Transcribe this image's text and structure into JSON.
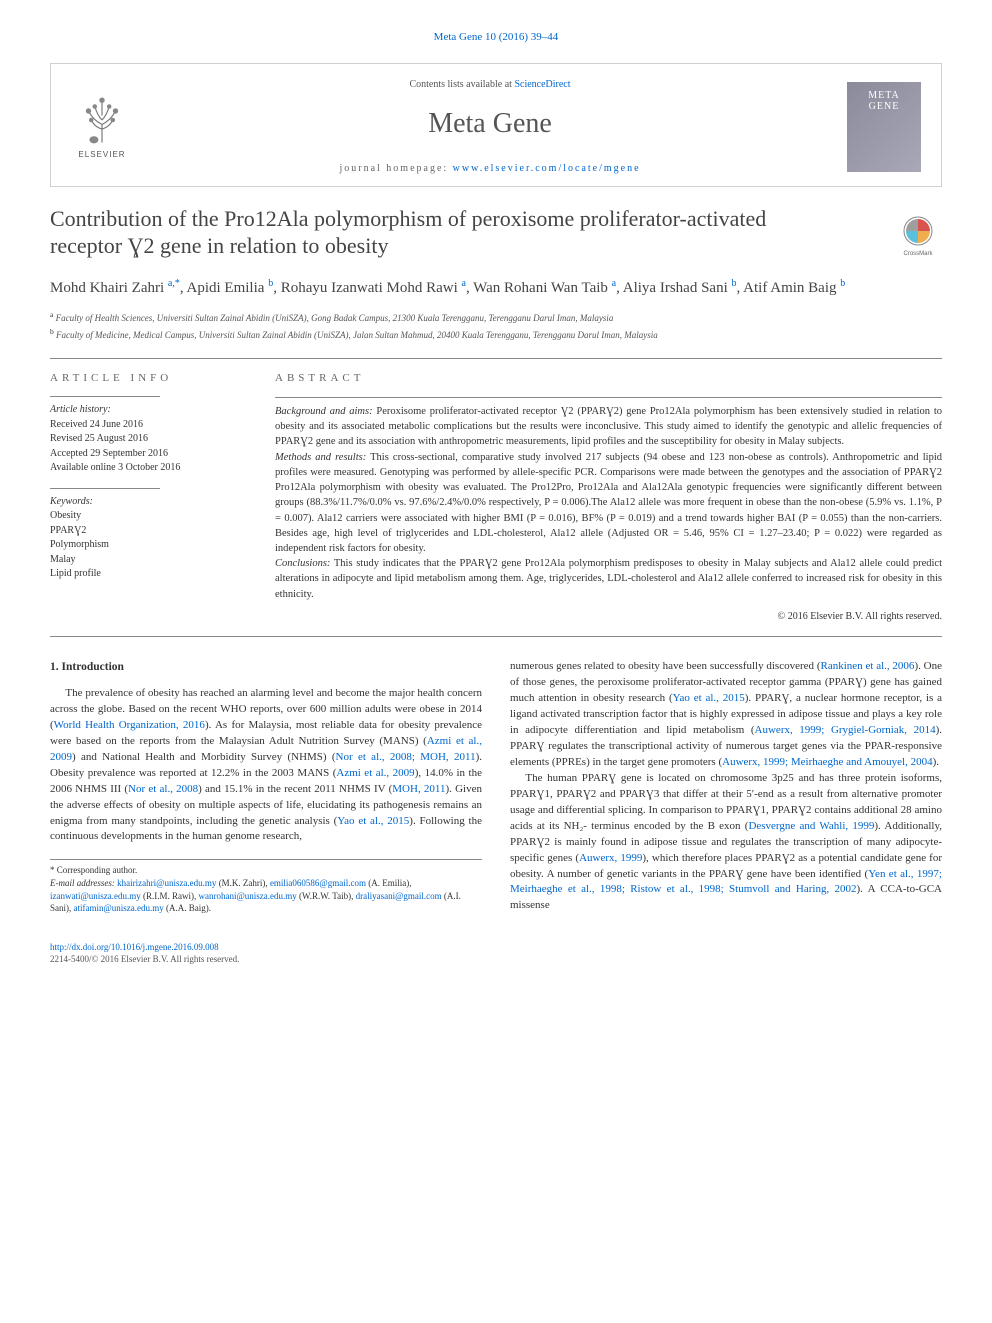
{
  "top_citation_text": "Meta Gene 10 (2016) 39–44",
  "header": {
    "contents_prefix": "Contents lists available at ",
    "contents_link": "ScienceDirect",
    "journal_name": "Meta Gene",
    "homepage_prefix": "journal homepage: ",
    "homepage_link": "www.elsevier.com/locate/mgene",
    "elsevier_label": "ELSEVIER",
    "cover_line1": "META",
    "cover_line2": "GENE"
  },
  "article": {
    "title": "Contribution of the Pro12Ala polymorphism of peroxisome proliferator-activated receptor Ɣ2 gene in relation to obesity",
    "authors_html": "Mohd Khairi Zahri <sup>a,*</sup>, Apidi Emilia <sup>b</sup>, Rohayu Izanwati Mohd Rawi <sup>a</sup>, Wan Rohani Wan Taib <sup>a</sup>, Aliya Irshad Sani <sup>b</sup>, Atif Amin Baig <sup>b</sup>",
    "affiliations": [
      {
        "sup": "a",
        "text": " Faculty of Health Sciences, Universiti Sultan Zainal Abidin (UniSZA), Gong Badak Campus, 21300 Kuala Terengganu, Terengganu Darul Iman, Malaysia"
      },
      {
        "sup": "b",
        "text": " Faculty of Medicine, Medical Campus, Universiti Sultan Zainal Abidin (UniSZA), Jalan Sultan Mahmud, 20400 Kuala Terengganu, Terengganu Darul Iman, Malaysia"
      }
    ]
  },
  "info": {
    "heading": "article info",
    "history_label": "Article history:",
    "history_lines": [
      "Received 24 June 2016",
      "Revised 25 August 2016",
      "Accepted 29 September 2016",
      "Available online 3 October 2016"
    ],
    "keywords_label": "Keywords:",
    "keywords": [
      "Obesity",
      "PPARƔ2",
      "Polymorphism",
      "Malay",
      "Lipid profile"
    ]
  },
  "abstract": {
    "heading": "abstract",
    "para1_label": "Background and aims:",
    "para1_text": " Peroxisome proliferator-activated receptor Ɣ2 (PPARƔ2) gene Pro12Ala polymorphism has been extensively studied in relation to obesity and its associated metabolic complications but the results were inconclusive. This study aimed to identify the genotypic and allelic frequencies of PPARƔ2 gene and its association with anthropometric measurements, lipid profiles and the susceptibility for obesity in Malay subjects.",
    "para2_label": "Methods and results:",
    "para2_text": " This cross-sectional, comparative study involved 217 subjects (94 obese and 123 non-obese as controls). Anthropometric and lipid profiles were measured. Genotyping was performed by allele-specific PCR. Comparisons were made between the genotypes and the association of PPARƔ2 Pro12Ala polymorphism with obesity was evaluated. The Pro12Pro, Pro12Ala and Ala12Ala genotypic frequencies were significantly different between groups (88.3%/11.7%/0.0% vs. 97.6%/2.4%/0.0% respectively, P = 0.006).The Ala12 allele was more frequent in obese than the non-obese (5.9% vs. 1.1%, P = 0.007). Ala12 carriers were associated with higher BMI (P = 0.016), BF% (P = 0.019) and a trend towards higher BAI (P = 0.055) than the non-carriers. Besides age, high level of triglycerides and LDL-cholesterol, Ala12 allele (Adjusted OR = 5.46, 95% CI = 1.27–23.40; P = 0.022) were regarded as independent risk factors for obesity.",
    "para3_label": "Conclusions:",
    "para3_text": " This study indicates that the PPARƔ2 gene Pro12Ala polymorphism predisposes to obesity in Malay subjects and Ala12 allele could predict alterations in adipocyte and lipid metabolism among them. Age, triglycerides, LDL-cholesterol and Ala12 allele conferred to increased risk for obesity in this ethnicity.",
    "copyright": "© 2016 Elsevier B.V. All rights reserved."
  },
  "body": {
    "heading": "1. Introduction",
    "p1a": "The prevalence of obesity has reached an alarming level and become the major health concern across the globe. Based on the recent WHO reports, over 600 million adults were obese in 2014 (",
    "p1_link1": "World Health Organization, 2016",
    "p1b": "). As for Malaysia, most reliable data for obesity prevalence were based on the reports from the Malaysian Adult Nutrition Survey (MANS) (",
    "p1_link2": "Azmi et al., 2009",
    "p1c": ") and National Health and Morbidity Survey (NHMS) (",
    "p1_link3": "Nor et al., 2008; MOH, 2011",
    "p1d": "). Obesity prevalence was reported at 12.2% in the 2003 MANS (",
    "p1_link4": "Azmi et al., 2009",
    "p1e": "), 14.0% in the 2006 NHMS III (",
    "p1_link5": "Nor et al., 2008",
    "p1f": ") and 15.1% in the recent 2011 NHMS IV (",
    "p1_link6": "MOH, 2011",
    "p1g": "). Given the adverse effects of obesity on multiple aspects of life, elucidating its pathogenesis remains an enigma from many standpoints, including the genetic analysis (",
    "p1_link7": "Yao et al., 2015",
    "p1h": "). Following the continuous developments in the human genome research,",
    "p2a": "numerous genes related to obesity have been successfully discovered (",
    "p2_link1": "Rankinen et al., 2006",
    "p2b": "). One of those genes, the peroxisome proliferator-activated receptor gamma (PPARƔ) gene has gained much attention in obesity research (",
    "p2_link2": "Yao et al., 2015",
    "p2c": "). PPARƔ, a nuclear hormone receptor, is a ligand activated transcription factor that is highly expressed in adipose tissue and plays a key role in adipocyte differentiation and lipid metabolism (",
    "p2_link3": "Auwerx, 1999; Grygiel-Gorniak, 2014",
    "p2d": "). PPARƔ regulates the transcriptional activity of numerous target genes via the PPAR-responsive elements (PPREs) in the target gene promoters (",
    "p2_link4": "Auwerx, 1999; Meirhaeghe and Amouyel, 2004",
    "p2e": ").",
    "p3a": "The human PPARƔ gene is located on chromosome 3p25 and has three protein isoforms, PPARƔ1, PPARƔ2 and PPARƔ3 that differ at their 5′-end as a result from alternative promoter usage and differential splicing. In comparison to PPARƔ1, PPARƔ2 contains additional 28 amino acids at its NH₂- terminus encoded by the B exon (",
    "p3_link1": "Desvergne and Wahli, 1999",
    "p3b": "). Additionally, PPARƔ2 is mainly found in adipose tissue and regulates the transcription of many adipocyte-specific genes (",
    "p3_link2": "Auwerx, 1999",
    "p3c": "), which therefore places PPARƔ2 as a potential candidate gene for obesity. A number of genetic variants in the PPARƔ gene have been identified (",
    "p3_link3": "Yen et al., 1997; Meirhaeghe et al., 1998; Ristow et al., 1998; Stumvoll and Haring, 2002",
    "p3d": "). A CCA-to-GCA missense"
  },
  "footnote": {
    "corr_label": "* Corresponding author.",
    "email_label": "E-mail addresses:",
    "emails": [
      {
        "addr": "khairizahri@unisza.edu.my",
        "who": " (M.K. Zahri), "
      },
      {
        "addr": "emilia060586@gmail.com",
        "who": " (A. Emilia), "
      },
      {
        "addr": "izanwati@unisza.edu.my",
        "who": " (R.I.M. Rawi), "
      },
      {
        "addr": "wanrohani@unisza.edu.my",
        "who": " (W.R.W. Taib), "
      },
      {
        "addr": "draliyasani@gmail.com",
        "who": " (A.I. Sani), "
      },
      {
        "addr": "atifamin@unisza.edu.my",
        "who": " (A.A. Baig)."
      }
    ]
  },
  "footer": {
    "doi": "http://dx.doi.org/10.1016/j.mgene.2016.09.008",
    "issn_line": "2214-5400/© 2016 Elsevier B.V. All rights reserved."
  },
  "colors": {
    "link": "#0066cc",
    "text": "#333333",
    "muted": "#666666",
    "border": "#888888",
    "cover_bg1": "#8a8a9a",
    "cover_bg2": "#a8a8b8"
  }
}
